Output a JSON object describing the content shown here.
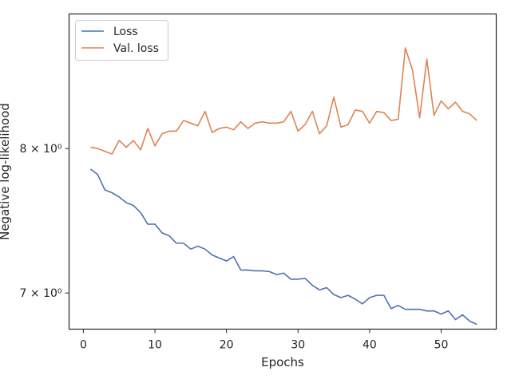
{
  "chart_data": {
    "type": "line",
    "xlabel": "Epochs",
    "ylabel": "Negative log-likelihood",
    "y_scale": "log",
    "xlim": [
      -2,
      57.7
    ],
    "ylim": [
      6.77,
      9.06
    ],
    "grid": false,
    "legend_position": "top-left",
    "x_ticks": [
      0,
      10,
      20,
      30,
      40,
      50
    ],
    "y_ticks": [
      {
        "value": 7,
        "label": "7 × 10⁰"
      },
      {
        "value": 8,
        "label": "8 × 10⁰"
      }
    ],
    "x": [
      1,
      2,
      3,
      4,
      5,
      6,
      7,
      8,
      9,
      10,
      11,
      12,
      13,
      14,
      15,
      16,
      17,
      18,
      19,
      20,
      21,
      22,
      23,
      24,
      25,
      26,
      27,
      28,
      29,
      30,
      31,
      32,
      33,
      34,
      35,
      36,
      37,
      38,
      39,
      40,
      41,
      42,
      43,
      44,
      45,
      46,
      47,
      48,
      49,
      50,
      51,
      52,
      53,
      54,
      55
    ],
    "series": [
      {
        "name": "Loss",
        "color": "#4c72b0",
        "values": [
          7.85,
          7.81,
          7.7,
          7.68,
          7.65,
          7.61,
          7.59,
          7.54,
          7.46,
          7.46,
          7.4,
          7.38,
          7.33,
          7.33,
          7.29,
          7.31,
          7.29,
          7.25,
          7.23,
          7.21,
          7.24,
          7.15,
          7.15,
          7.145,
          7.145,
          7.14,
          7.12,
          7.13,
          7.09,
          7.09,
          7.095,
          7.05,
          7.02,
          7.035,
          6.99,
          6.97,
          6.985,
          6.96,
          6.93,
          6.97,
          6.985,
          6.985,
          6.9,
          6.92,
          6.895,
          6.895,
          6.895,
          6.885,
          6.885,
          6.865,
          6.885,
          6.83,
          6.86,
          6.82,
          6.8
        ]
      },
      {
        "name": "Val. loss",
        "color": "#dd8452",
        "values": [
          8.01,
          8.0,
          7.98,
          7.96,
          8.06,
          8.01,
          8.06,
          7.99,
          8.15,
          8.02,
          8.11,
          8.13,
          8.13,
          8.21,
          8.19,
          8.17,
          8.28,
          8.12,
          8.15,
          8.16,
          8.14,
          8.2,
          8.15,
          8.19,
          8.2,
          8.19,
          8.19,
          8.2,
          8.28,
          8.13,
          8.18,
          8.28,
          8.11,
          8.17,
          8.39,
          8.16,
          8.18,
          8.29,
          8.28,
          8.19,
          8.28,
          8.27,
          8.21,
          8.22,
          8.78,
          8.6,
          8.23,
          8.69,
          8.25,
          8.36,
          8.3,
          8.35,
          8.28,
          8.26,
          8.21
        ]
      }
    ]
  }
}
